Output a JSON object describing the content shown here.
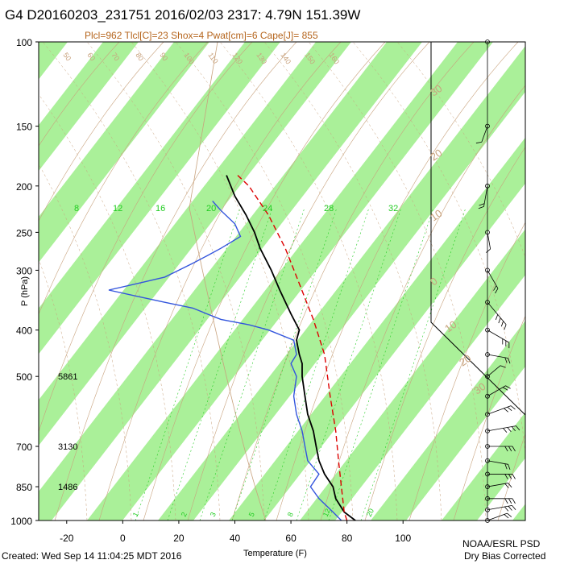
{
  "header": {
    "title": "G4 D20160203_231751 2016/02/03 2317:  4.79N 151.39W",
    "params": "Plcl=962 Tlcl[C]=23 Shox=4 Pwat[cm]=6 Cape[J]= 855"
  },
  "footer": {
    "created": "Created: Wed Sep 14 11:04:25 MDT 2016",
    "org": "NOAA/ESRL PSD",
    "correction": "Dry Bias Corrected"
  },
  "chart_data": {
    "type": "line",
    "title": "G4 D20160203_231751 2016/02/03 2317:  4.79N 151.39W",
    "xlabel": "Temperature (F)",
    "ylabel": "P (hPa)",
    "x_ticks": [
      "-20",
      "0",
      "20",
      "40",
      "60",
      "80",
      "100"
    ],
    "x_tick_values": [
      -20,
      0,
      20,
      40,
      60,
      80,
      100
    ],
    "y_ticks": [
      "100",
      "150",
      "200",
      "250",
      "300",
      "400",
      "500",
      "700",
      "850",
      "1000"
    ],
    "y_tick_values": [
      100,
      150,
      200,
      250,
      300,
      400,
      500,
      700,
      850,
      1000
    ],
    "ylim": [
      100,
      1000
    ],
    "yscale": "log",
    "heights": [
      {
        "label": "5861",
        "p": 500
      },
      {
        "label": "3130",
        "p": 700
      },
      {
        "label": "1486",
        "p": 850
      }
    ],
    "mixing_ratio_labels": [
      "8",
      "12",
      "16",
      "20",
      "24",
      "28",
      "32"
    ],
    "mixing_ratio_lower_labels": [
      "1",
      "2",
      "3",
      "5",
      "8",
      "12",
      "20"
    ],
    "dry_adiabat_labels": [
      "50",
      "60",
      "70",
      "80",
      "90",
      "100",
      "110",
      "120",
      "130",
      "140",
      "150",
      "160"
    ],
    "temp_line_labels": [
      "30",
      "20",
      "10",
      "0",
      "10",
      "20",
      "30"
    ],
    "series": [
      {
        "name": "temperature",
        "color": "#000000",
        "points": [
          [
            83,
            1000
          ],
          [
            79,
            960
          ],
          [
            76,
            900
          ],
          [
            75,
            850
          ],
          [
            72,
            800
          ],
          [
            70,
            750
          ],
          [
            69,
            700
          ],
          [
            68,
            650
          ],
          [
            66,
            600
          ],
          [
            65,
            550
          ],
          [
            64,
            500
          ],
          [
            64,
            470
          ],
          [
            63,
            450
          ],
          [
            62,
            420
          ],
          [
            63,
            400
          ],
          [
            60,
            370
          ],
          [
            56,
            330
          ],
          [
            53,
            300
          ],
          [
            49,
            270
          ],
          [
            47,
            250
          ],
          [
            44,
            230
          ],
          [
            40,
            210
          ],
          [
            37,
            190
          ]
        ]
      },
      {
        "name": "dewpoint",
        "color": "#3355dd",
        "points": [
          [
            78,
            1000
          ],
          [
            75,
            960
          ],
          [
            70,
            900
          ],
          [
            67,
            850
          ],
          [
            70,
            800
          ],
          [
            66,
            750
          ],
          [
            65,
            700
          ],
          [
            64,
            650
          ],
          [
            62,
            600
          ],
          [
            61,
            550
          ],
          [
            62,
            500
          ],
          [
            60,
            470
          ],
          [
            62,
            450
          ],
          [
            61,
            420
          ],
          [
            52,
            400
          ],
          [
            45,
            390
          ],
          [
            35,
            380
          ],
          [
            30,
            370
          ],
          [
            25,
            360
          ],
          [
            15,
            350
          ],
          [
            5,
            340
          ],
          [
            -5,
            330
          ],
          [
            5,
            320
          ],
          [
            15,
            310
          ],
          [
            20,
            300
          ],
          [
            25,
            290
          ],
          [
            30,
            280
          ],
          [
            35,
            270
          ],
          [
            42,
            255
          ],
          [
            40,
            240
          ],
          [
            35,
            225
          ],
          [
            32,
            215
          ]
        ]
      },
      {
        "name": "parcel",
        "color": "#dd0000",
        "dash": true,
        "points": [
          [
            80,
            1000
          ],
          [
            79,
            960
          ],
          [
            78,
            850
          ],
          [
            77,
            750
          ],
          [
            76,
            650
          ],
          [
            74,
            550
          ],
          [
            72,
            450
          ],
          [
            68,
            380
          ],
          [
            63,
            320
          ],
          [
            58,
            270
          ],
          [
            52,
            230
          ],
          [
            45,
            200
          ],
          [
            41,
            190
          ]
        ]
      }
    ],
    "wind_profile": [
      {
        "p": 1000,
        "dir": 70,
        "spd": 10
      },
      {
        "p": 950,
        "dir": 80,
        "spd": 15
      },
      {
        "p": 900,
        "dir": 90,
        "spd": 15
      },
      {
        "p": 850,
        "dir": 80,
        "spd": 10
      },
      {
        "p": 800,
        "dir": 90,
        "spd": 15
      },
      {
        "p": 750,
        "dir": 100,
        "spd": 10
      },
      {
        "p": 700,
        "dir": 90,
        "spd": 15
      },
      {
        "p": 650,
        "dir": 80,
        "spd": 20
      },
      {
        "p": 600,
        "dir": 70,
        "spd": 15
      },
      {
        "p": 550,
        "dir": 60,
        "spd": 10
      },
      {
        "p": 500,
        "dir": 50,
        "spd": 5
      },
      {
        "p": 450,
        "dir": 100,
        "spd": 10
      },
      {
        "p": 400,
        "dir": 120,
        "spd": 15
      },
      {
        "p": 350,
        "dir": 140,
        "spd": 20
      },
      {
        "p": 300,
        "dir": 150,
        "spd": 10
      },
      {
        "p": 250,
        "dir": 170,
        "spd": 5
      },
      {
        "p": 200,
        "dir": 190,
        "spd": 10
      },
      {
        "p": 150,
        "dir": 200,
        "spd": 5
      },
      {
        "p": 100,
        "dir": 0,
        "spd": 0
      }
    ]
  },
  "colors": {
    "band": "#aaf099",
    "adiabat": "#c8a27d",
    "mixing": "#22cc22",
    "axis": "#000000"
  }
}
